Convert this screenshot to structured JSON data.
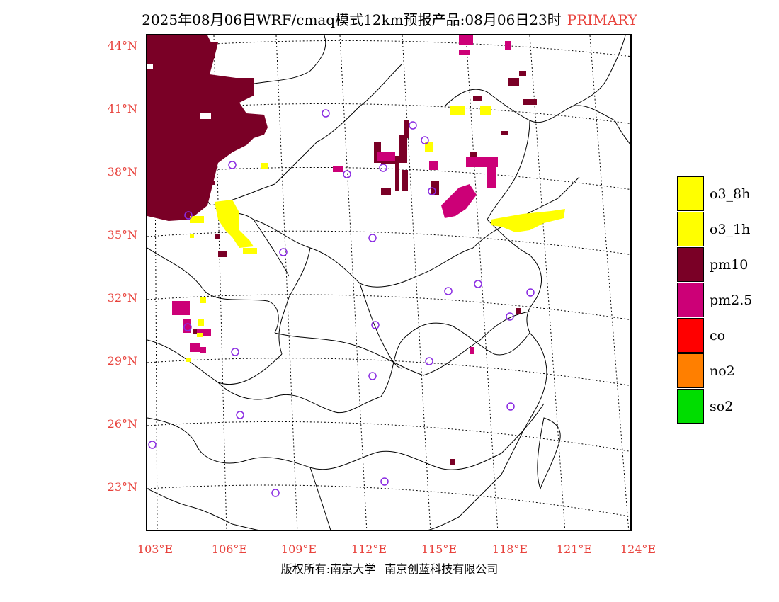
{
  "title": {
    "text": "2025年08月06日WRF/cmaq模式12km预报产品:08月06日23时",
    "tag": "PRIMARY"
  },
  "axes": {
    "lat_labels": [
      "44°N",
      "41°N",
      "38°N",
      "35°N",
      "32°N",
      "29°N",
      "26°N",
      "23°N"
    ],
    "lon_labels": [
      "103°E",
      "106°E",
      "109°E",
      "112°E",
      "115°E",
      "118°E",
      "121°E",
      "124°E"
    ]
  },
  "legend": {
    "items": [
      {
        "label": "o3_8h",
        "color": "#ffff00"
      },
      {
        "label": "o3_1h",
        "color": "#ffff00"
      },
      {
        "label": "pm10",
        "color": "#7a0026"
      },
      {
        "label": "pm2.5",
        "color": "#cc0077"
      },
      {
        "label": "co",
        "color": "#ff0000"
      },
      {
        "label": "no2",
        "color": "#ff7f00"
      },
      {
        "label": "so2",
        "color": "#00dd00"
      }
    ]
  },
  "footer": {
    "left": "版权所有:南京大学",
    "right": "南京创蓝科技有限公司"
  },
  "colors": {
    "pm10": "#7a0026",
    "pm25": "#cc0077",
    "o3": "#ffff00",
    "station": "#8a2be2",
    "label": "#e8423c"
  }
}
